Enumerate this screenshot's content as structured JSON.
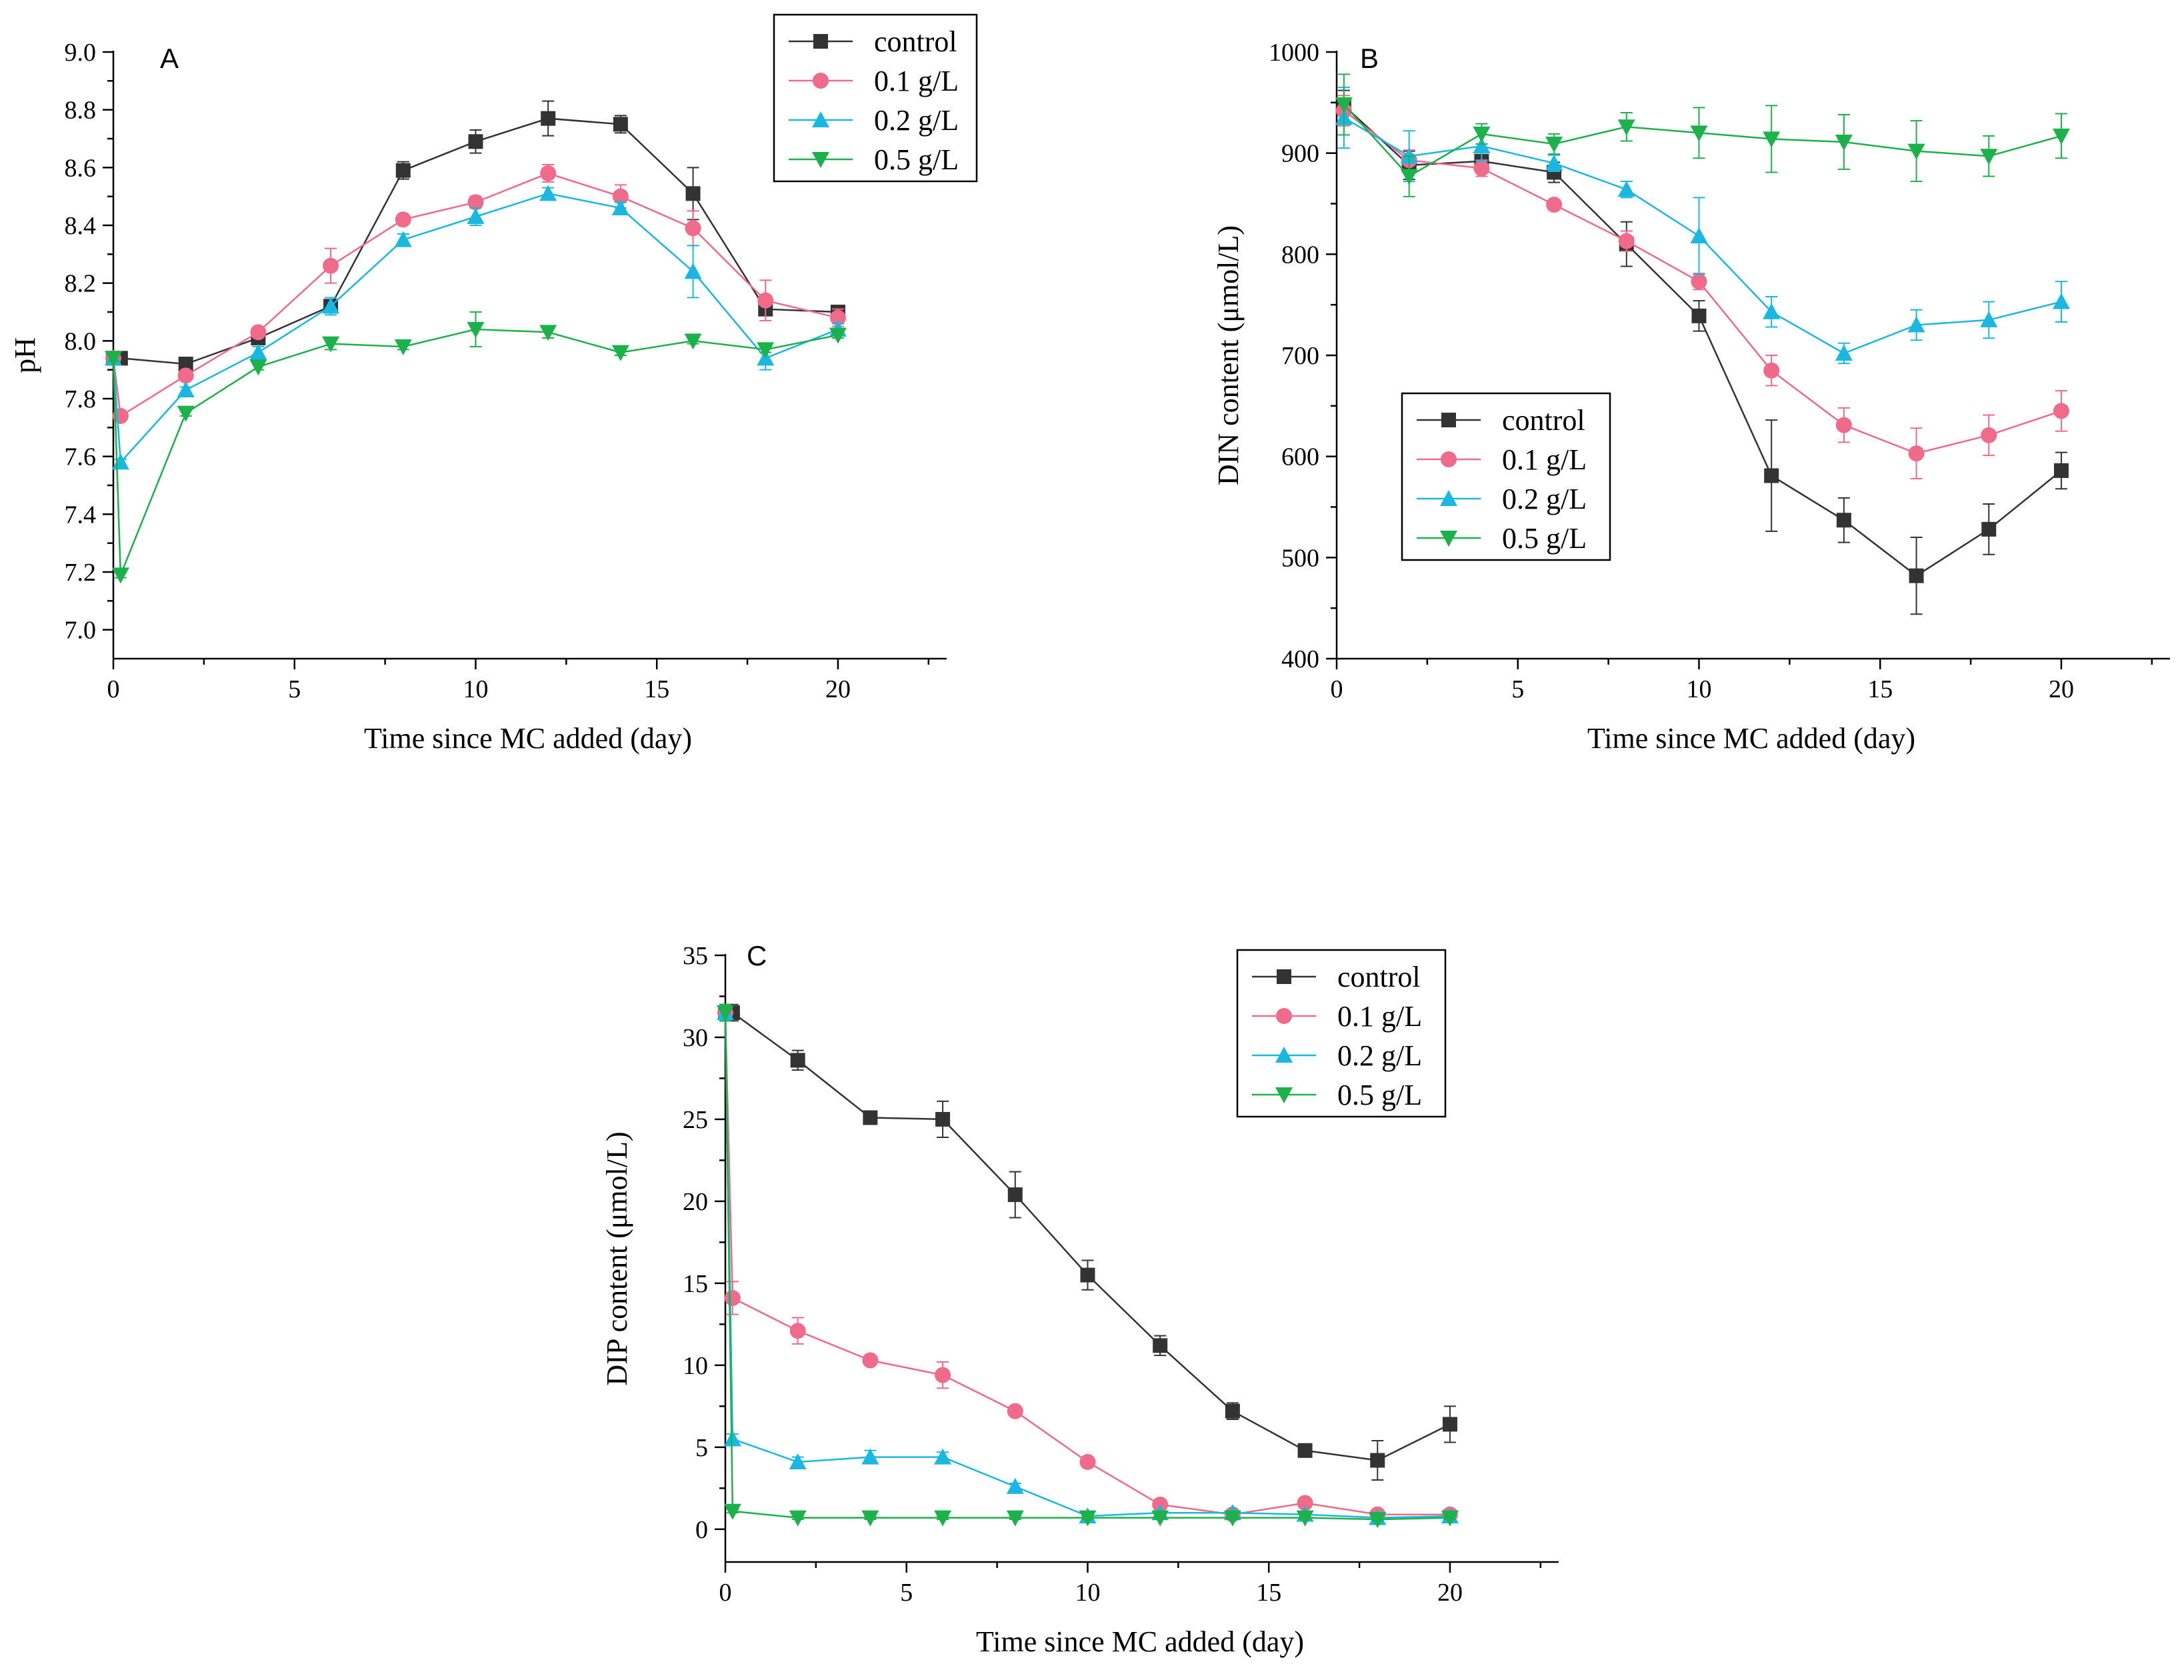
{
  "figure": {
    "panels": [
      "A",
      "B",
      "C"
    ]
  },
  "series_style": [
    {
      "name": "control",
      "color": "#333333",
      "marker": "square"
    },
    {
      "name": "0.1 g/L",
      "color": "#f06a8a",
      "marker": "circle"
    },
    {
      "name": "0.2 g/L",
      "color": "#1ab8e0",
      "marker": "triangle-up"
    },
    {
      "name": "0.5 g/L",
      "color": "#1db14b",
      "marker": "triangle-down"
    }
  ],
  "chart_data": [
    {
      "panel": "A",
      "type": "line",
      "title": "",
      "xlabel": "Time since MC added (day)",
      "ylabel": "pH",
      "xlim": [
        0,
        23
      ],
      "ylim": [
        6.9,
        9.0
      ],
      "xticks": [
        0,
        5,
        10,
        15,
        20
      ],
      "xtick_labels": [
        "0",
        "5",
        "10",
        "15",
        "20"
      ],
      "yticks": [
        7.0,
        7.2,
        7.4,
        7.6,
        7.8,
        8.0,
        8.2,
        8.4,
        8.6,
        8.8,
        9.0
      ],
      "ytick_labels": [
        "7.0",
        "7.2",
        "7.4",
        "7.6",
        "7.8",
        "8.0",
        "8.2",
        "8.4",
        "8.6",
        "8.8",
        "9.0"
      ],
      "legend_position": "top-right",
      "grid": false,
      "series": [
        {
          "name": "control",
          "x": [
            0,
            0.2,
            2,
            4,
            6,
            8,
            10,
            12,
            14,
            16,
            18,
            20
          ],
          "values": [
            7.94,
            7.94,
            7.92,
            8.01,
            8.12,
            8.59,
            8.69,
            8.77,
            8.75,
            8.51,
            8.11,
            8.1
          ],
          "errors": [
            0.01,
            0.01,
            0.01,
            0.01,
            0.02,
            0.03,
            0.04,
            0.06,
            0.03,
            0.09,
            0.02,
            0.01
          ]
        },
        {
          "name": "0.1 g/L",
          "x": [
            0,
            0.2,
            2,
            4,
            6,
            8,
            10,
            12,
            14,
            16,
            18,
            20
          ],
          "values": [
            7.94,
            7.74,
            7.88,
            8.03,
            8.26,
            8.42,
            8.48,
            8.58,
            8.5,
            8.39,
            8.14,
            8.08
          ],
          "errors": [
            0.01,
            0.01,
            0.01,
            0.01,
            0.06,
            0.01,
            0.02,
            0.03,
            0.04,
            0.06,
            0.07,
            0.03
          ]
        },
        {
          "name": "0.2 g/L",
          "x": [
            0,
            0.2,
            2,
            4,
            6,
            8,
            10,
            12,
            14,
            16,
            18,
            20
          ],
          "values": [
            7.94,
            7.58,
            7.83,
            7.96,
            8.12,
            8.35,
            8.43,
            8.51,
            8.46,
            8.24,
            7.94,
            8.04
          ],
          "errors": [
            0.01,
            0.01,
            0.01,
            0.02,
            0.03,
            0.02,
            0.03,
            0.02,
            0.02,
            0.09,
            0.04,
            0.02
          ]
        },
        {
          "name": "0.5 g/L",
          "x": [
            0,
            0.2,
            2,
            4,
            6,
            8,
            10,
            12,
            14,
            16,
            18,
            20
          ],
          "values": [
            7.94,
            7.19,
            7.75,
            7.91,
            7.99,
            7.98,
            8.04,
            8.03,
            7.96,
            8.0,
            7.97,
            8.02
          ],
          "errors": [
            0.01,
            0.01,
            0.01,
            0.01,
            0.02,
            0.01,
            0.06,
            0.02,
            0.01,
            0.01,
            0.01,
            0.01
          ]
        }
      ]
    },
    {
      "panel": "B",
      "type": "line",
      "title": "",
      "xlabel": "Time since MC added (day)",
      "ylabel": "DIN content (μmol/L)",
      "xlim": [
        0,
        23
      ],
      "ylim": [
        400,
        1000
      ],
      "xticks": [
        0,
        5,
        10,
        15,
        20
      ],
      "xtick_labels": [
        "0",
        "5",
        "10",
        "15",
        "20"
      ],
      "yticks": [
        400,
        500,
        600,
        700,
        800,
        900,
        1000
      ],
      "ytick_labels": [
        "400",
        "500",
        "600",
        "700",
        "800",
        "900",
        "1000"
      ],
      "legend_position": "center-left",
      "grid": false,
      "series": [
        {
          "name": "control",
          "x": [
            0.2,
            2,
            4,
            6,
            8,
            10,
            12,
            14,
            16,
            18,
            20
          ],
          "values": [
            947,
            888,
            892,
            881,
            810,
            739,
            581,
            537,
            482,
            528,
            586
          ],
          "errors": [
            15,
            14,
            10,
            10,
            22,
            15,
            55,
            22,
            38,
            25,
            18
          ]
        },
        {
          "name": "0.1 g/L",
          "x": [
            0.2,
            2,
            4,
            6,
            8,
            10,
            12,
            14,
            16,
            18,
            20
          ],
          "values": [
            942,
            893,
            885,
            849,
            813,
            773,
            685,
            631,
            603,
            621,
            645
          ],
          "errors": [
            15,
            10,
            8,
            5,
            10,
            8,
            15,
            17,
            25,
            20,
            20
          ]
        },
        {
          "name": "0.2 g/L",
          "x": [
            0.2,
            2,
            4,
            6,
            8,
            10,
            12,
            14,
            16,
            18,
            20
          ],
          "values": [
            935,
            897,
            907,
            890,
            864,
            818,
            743,
            702,
            730,
            735,
            753
          ],
          "errors": [
            30,
            25,
            15,
            8,
            8,
            38,
            15,
            10,
            15,
            18,
            20
          ]
        },
        {
          "name": "0.5 g/L",
          "x": [
            0.2,
            2,
            4,
            6,
            8,
            10,
            12,
            14,
            16,
            18,
            20
          ],
          "values": [
            948,
            877,
            919,
            909,
            926,
            920,
            914,
            911,
            902,
            897,
            917
          ],
          "errors": [
            30,
            20,
            10,
            10,
            14,
            25,
            33,
            27,
            30,
            20,
            22
          ]
        }
      ]
    },
    {
      "panel": "C",
      "type": "line",
      "title": "",
      "xlabel": "Time since MC added (day)",
      "ylabel": "DIP content (μmol/L)",
      "xlim": [
        0,
        23
      ],
      "ylim": [
        -2,
        35
      ],
      "xticks": [
        0,
        5,
        10,
        15,
        20
      ],
      "xtick_labels": [
        "0",
        "5",
        "10",
        "15",
        "20"
      ],
      "yticks": [
        0,
        5,
        10,
        15,
        20,
        25,
        30,
        35
      ],
      "ytick_labels": [
        "0",
        "5",
        "10",
        "15",
        "20",
        "25",
        "30",
        "35"
      ],
      "legend_position": "top-right",
      "grid": false,
      "series": [
        {
          "name": "control",
          "x": [
            0,
            0.2,
            2,
            4,
            6,
            8,
            10,
            12,
            14,
            16,
            18,
            20
          ],
          "values": [
            31.5,
            31.5,
            28.6,
            25.1,
            25.0,
            20.4,
            15.5,
            11.2,
            7.2,
            4.8,
            4.2,
            6.4
          ],
          "errors": [
            0.5,
            0.5,
            0.6,
            0.2,
            1.1,
            1.4,
            0.9,
            0.6,
            0.5,
            0.4,
            1.2,
            1.1
          ]
        },
        {
          "name": "0.1 g/L",
          "x": [
            0,
            0.2,
            2,
            4,
            6,
            8,
            10,
            12,
            14,
            16,
            18,
            20
          ],
          "values": [
            31.5,
            14.1,
            12.1,
            10.3,
            9.4,
            7.2,
            4.1,
            1.5,
            0.9,
            1.6,
            0.9,
            0.9
          ],
          "errors": [
            0.5,
            1.0,
            0.8,
            0.3,
            0.8,
            0.2,
            0.2,
            0.2,
            0.1,
            0.2,
            0.1,
            0.1
          ]
        },
        {
          "name": "0.2 g/L",
          "x": [
            0,
            0.2,
            2,
            4,
            6,
            8,
            10,
            12,
            14,
            16,
            18,
            20
          ],
          "values": [
            31.5,
            5.5,
            4.1,
            4.4,
            4.4,
            2.6,
            0.8,
            1.0,
            1.0,
            0.9,
            0.7,
            0.8
          ],
          "errors": [
            0.5,
            0.3,
            0.3,
            0.4,
            0.3,
            0.2,
            0.1,
            0.1,
            0.1,
            0.1,
            0.1,
            0.1
          ]
        },
        {
          "name": "0.5 g/L",
          "x": [
            0,
            0.2,
            2,
            4,
            6,
            8,
            10,
            12,
            14,
            16,
            18,
            20
          ],
          "values": [
            31.5,
            1.1,
            0.7,
            0.7,
            0.7,
            0.7,
            0.7,
            0.7,
            0.7,
            0.7,
            0.6,
            0.7
          ],
          "errors": [
            0.5,
            0.1,
            0.1,
            0.1,
            0.1,
            0.1,
            0.1,
            0.1,
            0.1,
            0.1,
            0.1,
            0.1
          ]
        }
      ]
    }
  ]
}
